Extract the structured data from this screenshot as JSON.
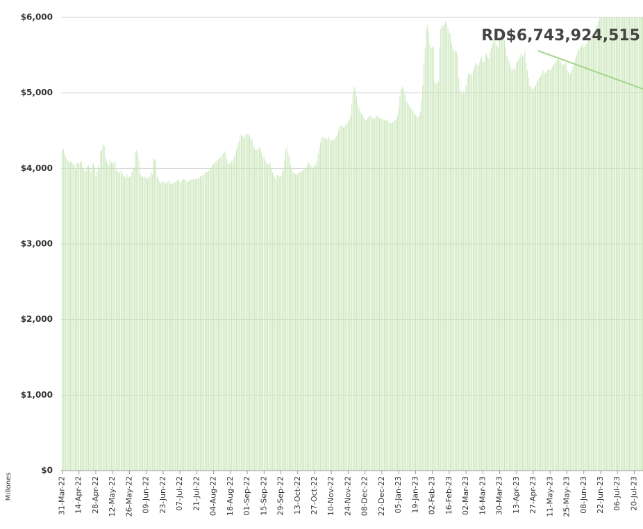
{
  "chart_data": {
    "type": "bar",
    "annotation": "RD$6,743,924,515",
    "y_label": "Millones",
    "color": "#c9e6b8",
    "grid": true,
    "ylim": [
      0,
      6000
    ],
    "yticks": [
      {
        "value": 0,
        "label": "$0"
      },
      {
        "value": 1000,
        "label": "$1,000"
      },
      {
        "value": 2000,
        "label": "$2,000"
      },
      {
        "value": 3000,
        "label": "$3,000"
      },
      {
        "value": 4000,
        "label": "$4,000"
      },
      {
        "value": 5000,
        "label": "$5,000"
      },
      {
        "value": 6000,
        "label": "$6,000"
      }
    ],
    "categories": [
      "31-Mar-22",
      null,
      null,
      null,
      null,
      null,
      null,
      null,
      null,
      null,
      null,
      null,
      null,
      null,
      "14-Apr-22",
      null,
      null,
      null,
      null,
      null,
      null,
      null,
      null,
      null,
      null,
      null,
      null,
      null,
      "28-Apr-22",
      null,
      null,
      null,
      null,
      null,
      null,
      null,
      null,
      null,
      null,
      null,
      null,
      null,
      "12-May-22",
      null,
      null,
      null,
      null,
      null,
      null,
      null,
      null,
      null,
      null,
      null,
      null,
      null,
      "26-May-22",
      null,
      null,
      null,
      null,
      null,
      null,
      null,
      null,
      null,
      null,
      null,
      null,
      null,
      "09-Jun-22",
      null,
      null,
      null,
      null,
      null,
      null,
      null,
      null,
      null,
      null,
      null,
      null,
      null,
      "23-Jun-22",
      null,
      null,
      null,
      null,
      null,
      null,
      null,
      null,
      null,
      null,
      null,
      null,
      null,
      "07-Jul-22",
      null,
      null,
      null,
      null,
      null,
      null,
      null,
      null,
      null,
      null,
      null,
      null,
      null,
      "21-Jul-22",
      null,
      null,
      null,
      null,
      null,
      null,
      null,
      null,
      null,
      null,
      null,
      null,
      null,
      "04-Aug-22",
      null,
      null,
      null,
      null,
      null,
      null,
      null,
      null,
      null,
      null,
      null,
      null,
      null,
      "18-Aug-22",
      null,
      null,
      null,
      null,
      null,
      null,
      null,
      null,
      null,
      null,
      null,
      null,
      null,
      "01-Sep-22",
      null,
      null,
      null,
      null,
      null,
      null,
      null,
      null,
      null,
      null,
      null,
      null,
      null,
      "15-Sep-22",
      null,
      null,
      null,
      null,
      null,
      null,
      null,
      null,
      null,
      null,
      null,
      null,
      null,
      "29-Sep-22",
      null,
      null,
      null,
      null,
      null,
      null,
      null,
      null,
      null,
      null,
      null,
      null,
      null,
      "13-Oct-22",
      null,
      null,
      null,
      null,
      null,
      null,
      null,
      null,
      null,
      null,
      null,
      null,
      null,
      "27-Oct-22",
      null,
      null,
      null,
      null,
      null,
      null,
      null,
      null,
      null,
      null,
      null,
      null,
      null,
      "10-Nov-22",
      null,
      null,
      null,
      null,
      null,
      null,
      null,
      null,
      null,
      null,
      null,
      null,
      null,
      "24-Nov-22",
      null,
      null,
      null,
      null,
      null,
      null,
      null,
      null,
      null,
      null,
      null,
      null,
      null,
      "08-Dec-22",
      null,
      null,
      null,
      null,
      null,
      null,
      null,
      null,
      null,
      null,
      null,
      null,
      null,
      "22-Dec-22",
      null,
      null,
      null,
      null,
      null,
      null,
      null,
      null,
      null,
      null,
      null,
      null,
      null,
      "05-Jan-23",
      null,
      null,
      null,
      null,
      null,
      null,
      null,
      null,
      null,
      null,
      null,
      null,
      null,
      "19-Jan-23",
      null,
      null,
      null,
      null,
      null,
      null,
      null,
      null,
      null,
      null,
      null,
      null,
      null,
      "02-Feb-23",
      null,
      null,
      null,
      null,
      null,
      null,
      null,
      null,
      null,
      null,
      null,
      null,
      null,
      "16-Feb-23",
      null,
      null,
      null,
      null,
      null,
      null,
      null,
      null,
      null,
      null,
      null,
      null,
      null,
      "02-Mar-23",
      null,
      null,
      null,
      null,
      null,
      null,
      null,
      null,
      null,
      null,
      null,
      null,
      null,
      "16-Mar-23",
      null,
      null,
      null,
      null,
      null,
      null,
      null,
      null,
      null,
      null,
      null,
      null,
      null,
      "30-Mar-23",
      null,
      null,
      null,
      null,
      null,
      null,
      null,
      null,
      null,
      null,
      null,
      null,
      null,
      "13-Apr-23",
      null,
      null,
      null,
      null,
      null,
      null,
      null,
      null,
      null,
      null,
      null,
      null,
      null,
      "27-Apr-23",
      null,
      null,
      null,
      null,
      null,
      null,
      null,
      null,
      null,
      null,
      null,
      null,
      null,
      "11-May-23",
      null,
      null,
      null,
      null,
      null,
      null,
      null,
      null,
      null,
      null,
      null,
      null,
      null,
      "25-May-23",
      null,
      null,
      null,
      null,
      null,
      null,
      null,
      null,
      null,
      null,
      null,
      null,
      null,
      "08-Jun-23",
      null,
      null,
      null,
      null,
      null,
      null,
      null,
      null,
      null,
      null,
      null,
      null,
      null,
      "22-Jun-23",
      null,
      null,
      null,
      null,
      null,
      null,
      null,
      null,
      null,
      null,
      null,
      null,
      null,
      "06-Jul-23",
      null,
      null,
      null,
      null,
      null,
      null,
      null,
      null,
      null,
      null,
      null,
      null,
      null,
      "20-Jul-23",
      null,
      null,
      null,
      null,
      null,
      null,
      null,
      null
    ],
    "values": [
      4250,
      4260,
      4200,
      4150,
      4120,
      4100,
      4090,
      4080,
      4100,
      4060,
      4050,
      3980,
      4070,
      4080,
      4060,
      4080,
      4100,
      4020,
      3990,
      3950,
      3980,
      4030,
      4040,
      4000,
      3950,
      4050,
      4060,
      4020,
      3900,
      3960,
      4050,
      4000,
      4230,
      4250,
      4320,
      4300,
      4150,
      4100,
      4060,
      4050,
      4120,
      4080,
      4080,
      4060,
      4100,
      3980,
      3960,
      3950,
      3940,
      3970,
      3930,
      3900,
      3890,
      3880,
      3920,
      3890,
      3880,
      3900,
      3950,
      3990,
      4020,
      4220,
      4240,
      4200,
      4100,
      3920,
      3900,
      3880,
      3890,
      3890,
      3880,
      3860,
      3900,
      3880,
      3950,
      3920,
      4140,
      4120,
      4100,
      3900,
      3860,
      3820,
      3800,
      3820,
      3830,
      3820,
      3800,
      3810,
      3830,
      3840,
      3800,
      3790,
      3810,
      3800,
      3820,
      3830,
      3850,
      3840,
      3820,
      3830,
      3850,
      3860,
      3850,
      3840,
      3820,
      3830,
      3840,
      3850,
      3860,
      3860,
      3850,
      3860,
      3860,
      3870,
      3880,
      3900,
      3890,
      3910,
      3930,
      3950,
      3960,
      3950,
      3970,
      3990,
      4010,
      4050,
      4060,
      4080,
      4090,
      4110,
      4120,
      4140,
      4150,
      4180,
      4200,
      4230,
      4200,
      4120,
      4080,
      4060,
      4080,
      4090,
      4100,
      4150,
      4200,
      4250,
      4300,
      4350,
      4420,
      4450,
      4430,
      4400,
      4440,
      4450,
      4460,
      4450,
      4430,
      4400,
      4380,
      4300,
      4260,
      4240,
      4250,
      4260,
      4280,
      4260,
      4200,
      4150,
      4150,
      4100,
      4080,
      4050,
      4060,
      4070,
      4010,
      3950,
      3900,
      3880,
      3850,
      3920,
      3900,
      3890,
      3900,
      3950,
      4000,
      4100,
      4250,
      4280,
      4200,
      4150,
      4050,
      4000,
      3950,
      3940,
      3930,
      3920,
      3930,
      3950,
      3950,
      3960,
      3970,
      3980,
      4000,
      4010,
      4050,
      4080,
      4060,
      4030,
      4020,
      4010,
      4040,
      4050,
      4100,
      4200,
      4280,
      4350,
      4400,
      4420,
      4410,
      4400,
      4380,
      4400,
      4420,
      4380,
      4360,
      4380,
      4380,
      4400,
      4420,
      4450,
      4500,
      4550,
      4570,
      4560,
      4540,
      4550,
      4580,
      4600,
      4620,
      4650,
      4700,
      4850,
      5000,
      5080,
      5050,
      4950,
      4850,
      4800,
      4750,
      4720,
      4700,
      4680,
      4650,
      4640,
      4660,
      4680,
      4700,
      4690,
      4670,
      4650,
      4660,
      4690,
      4700,
      4680,
      4670,
      4650,
      4660,
      4650,
      4640,
      4630,
      4640,
      4650,
      4620,
      4600,
      4600,
      4610,
      4620,
      4640,
      4650,
      4700,
      4800,
      4950,
      5050,
      5080,
      5050,
      4980,
      4900,
      4880,
      4850,
      4820,
      4800,
      4780,
      4760,
      4720,
      4700,
      4690,
      4680,
      4700,
      4750,
      4900,
      5100,
      5400,
      5600,
      5850,
      5900,
      5800,
      5650,
      5600,
      5620,
      5600,
      5150,
      5120,
      5130,
      5150,
      5600,
      5850,
      5900,
      5880,
      5920,
      5950,
      5900,
      5850,
      5800,
      5780,
      5650,
      5600,
      5550,
      5560,
      5540,
      5500,
      5200,
      5050,
      5000,
      4980,
      5020,
      5000,
      5100,
      5200,
      5250,
      5260,
      5240,
      5250,
      5300,
      5350,
      5400,
      5380,
      5350,
      5400,
      5450,
      5480,
      5400,
      5420,
      5500,
      5520,
      5480,
      5450,
      5550,
      5600,
      5650,
      5700,
      5680,
      5650,
      5620,
      5600,
      5700,
      5800,
      5820,
      5780,
      5700,
      5600,
      5500,
      5450,
      5400,
      5350,
      5300,
      5320,
      5350,
      5300,
      5400,
      5420,
      5450,
      5500,
      5520,
      5480,
      5500,
      5550,
      5400,
      5300,
      5200,
      5100,
      5080,
      5060,
      5050,
      5080,
      5100,
      5150,
      5180,
      5200,
      5220,
      5250,
      5300,
      5280,
      5260,
      5280,
      5300,
      5320,
      5300,
      5320,
      5350,
      5380,
      5400,
      5420,
      5440,
      5450,
      5430,
      5400,
      5380,
      5370,
      5390,
      5400,
      5300,
      5280,
      5250,
      5260,
      5300,
      5350,
      5400,
      5450,
      5500,
      5550,
      5580,
      5600,
      5620,
      5650,
      5600,
      5620,
      5650,
      5680,
      5700,
      5720,
      5750,
      5780,
      5800,
      5820,
      5850,
      5900,
      5950,
      6000,
      6050,
      6100,
      6150,
      6100,
      6080,
      6120,
      6150,
      6100,
      6130,
      6150,
      6200,
      6180,
      6150,
      6200,
      6200,
      6220,
      6250,
      6200,
      6180,
      6220,
      6250,
      6230,
      6200,
      6220,
      6250,
      6260,
      6240,
      6220,
      6230,
      6250,
      6260,
      6240,
      6220,
      6250,
      6260,
      6240,
      6230
    ]
  }
}
